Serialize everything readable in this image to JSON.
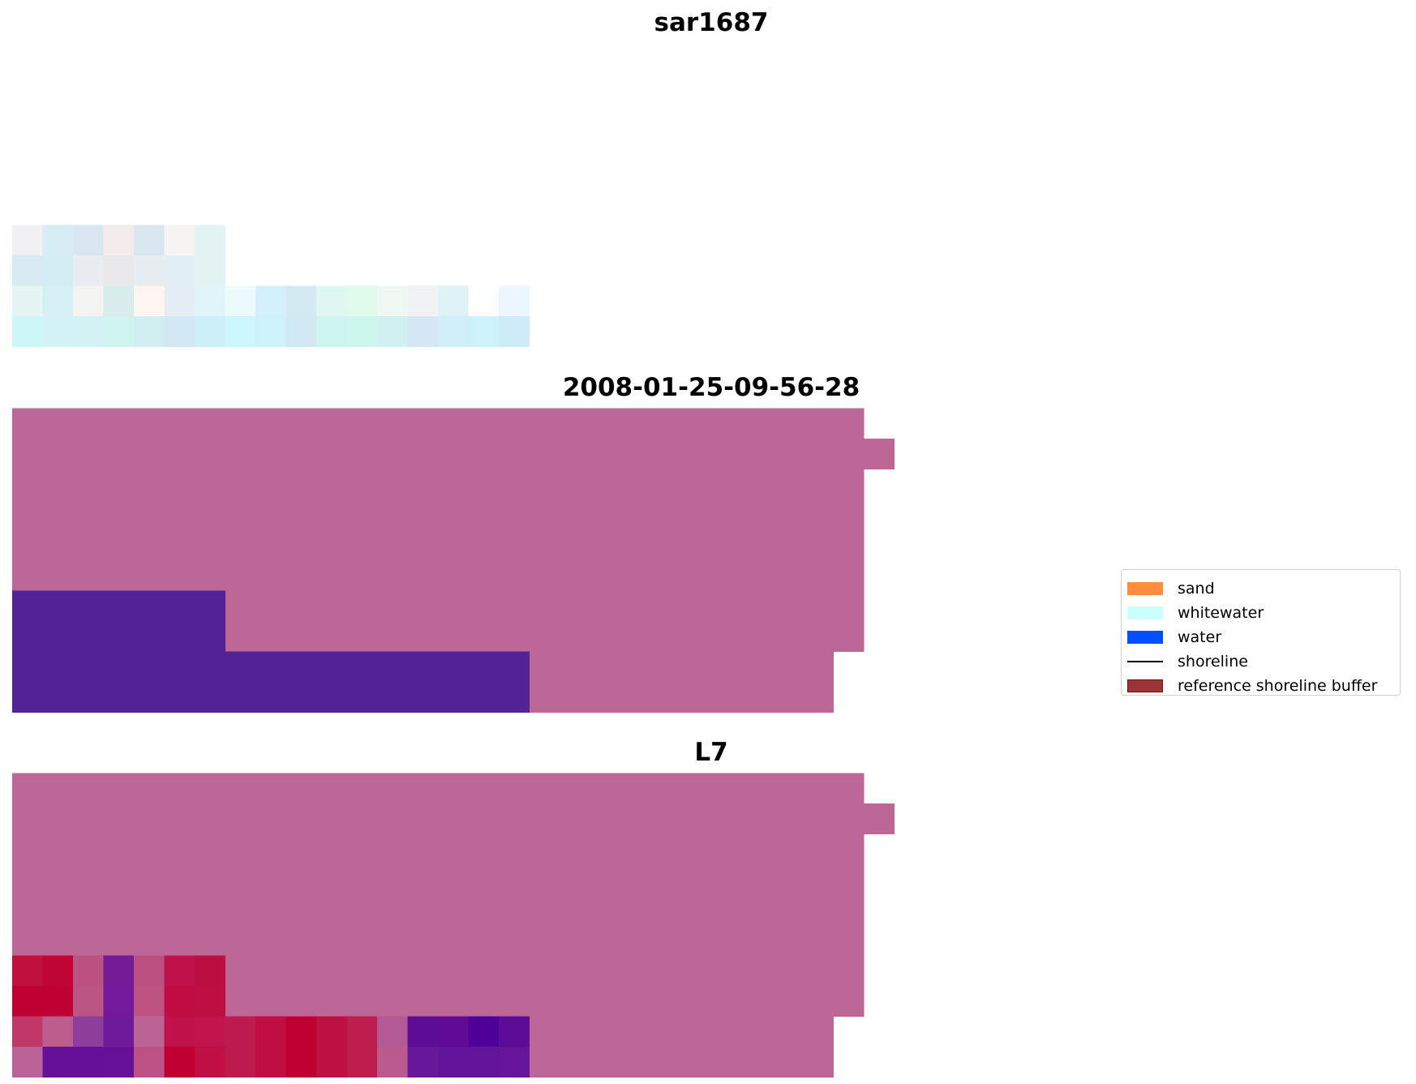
{
  "chart_data": [
    {
      "type": "heatmap",
      "title": "sar1687",
      "rows": [
        [
          "#f1f0f3",
          "#d8ecf4",
          "#dae7f0",
          "#f4ebeb",
          "#d9e8f0",
          "#f6f4f3",
          "#e3f2f2"
        ],
        [
          "#d9ebf2",
          "#d2edf4",
          "#e9ecf0",
          "#e9e8eb",
          "#e8edf1",
          "#e2eff5",
          "#e3f2f3"
        ],
        [
          "#e5f4f4",
          "#d5eff4",
          "#f3f3f1",
          "#d9ecec",
          "#fff5f1",
          "#e4eff5",
          "#e0f5f9",
          "#eefbfe",
          "#d3f1f8",
          "#d3eaf3",
          "#e0f6f0",
          "#e0fbec",
          "#eff9f2",
          "#f0f2f4",
          "#e0f2f7",
          "#fdfeff",
          "#ecf6fd"
        ],
        [
          "#cdf6f7",
          "#d2f2f6",
          "#d3f2f3",
          "#cff4ef",
          "#d1eff1",
          "#d2e9f3",
          "#cdeff7",
          "#ccf7fd",
          "#cdf2fa",
          "#d0e9f2",
          "#cef4f0",
          "#cdf7ec",
          "#d0f0f1",
          "#d4e7f3",
          "#d0eff8",
          "#cef2fc",
          "#cfecfb"
        ]
      ],
      "row_offset": 6
    },
    {
      "type": "heatmap",
      "title": "2008-01-25-09-56-28",
      "base_color": "#bd6796",
      "overlay_color": "#532295",
      "rows": [
        [
          "#532295",
          "#532295",
          "#532295",
          "#532295",
          "#532295",
          "#532295",
          "#532295"
        ],
        [
          "#532295",
          "#532295",
          "#532295",
          "#532295",
          "#532295",
          "#532295",
          "#532295"
        ],
        [
          "#532295",
          "#532295",
          "#532295",
          "#532295",
          "#532295",
          "#532295",
          "#532295",
          "#532295",
          "#532295",
          "#532295",
          "#532295",
          "#532295",
          "#532295",
          "#532295",
          "#532295",
          "#532295",
          "#532295"
        ],
        [
          "#532295",
          "#532295",
          "#532295",
          "#532295",
          "#532295",
          "#532295",
          "#532295",
          "#532295",
          "#532295",
          "#532295",
          "#532295",
          "#532295",
          "#532295",
          "#532295",
          "#532295",
          "#532295",
          "#532295"
        ]
      ],
      "row_offset": 6
    },
    {
      "type": "heatmap",
      "title": "L7",
      "base_color": "#bd6796",
      "rows": [
        [
          "#c0103c",
          "#c00535",
          "#bc527f",
          "#741c98",
          "#bc5080",
          "#c0124a",
          "#bd0e42"
        ],
        [
          "#be0033",
          "#be0033",
          "#bb5583",
          "#73199a",
          "#bc5380",
          "#c00c43",
          "#be0e42"
        ],
        [
          "#c13868",
          "#bb5c8d",
          "#8f3d9c",
          "#6f1a9a",
          "#bb6394",
          "#c0124a",
          "#c0144a",
          "#bd1b4d",
          "#c00d42",
          "#bd0030",
          "#bf1243",
          "#bb1d4c",
          "#b45a96",
          "#5e0d96",
          "#600c97",
          "#4e0099",
          "#5d0c98"
        ],
        [
          "#bb629a",
          "#66109a",
          "#66109a",
          "#67109a",
          "#bc5286",
          "#bf0030",
          "#c01045",
          "#bd1b4d",
          "#c00d42",
          "#bd0030",
          "#bf1243",
          "#bb1d4c",
          "#ba5a8d",
          "#67189a",
          "#62149a",
          "#62149a",
          "#66149a"
        ]
      ],
      "row_offset": 6
    }
  ],
  "legend": {
    "placement": "center-right",
    "items": [
      {
        "label": "sand",
        "color": "#ff8c3f",
        "kind": "patch"
      },
      {
        "label": "whitewater",
        "color": "#ccffff",
        "kind": "patch"
      },
      {
        "label": "water",
        "color": "#0050ff",
        "kind": "patch"
      },
      {
        "label": "shoreline",
        "color": "#000000",
        "kind": "line"
      },
      {
        "label": "reference shoreline buffer",
        "color": "#9b3535",
        "kind": "patch"
      }
    ]
  }
}
